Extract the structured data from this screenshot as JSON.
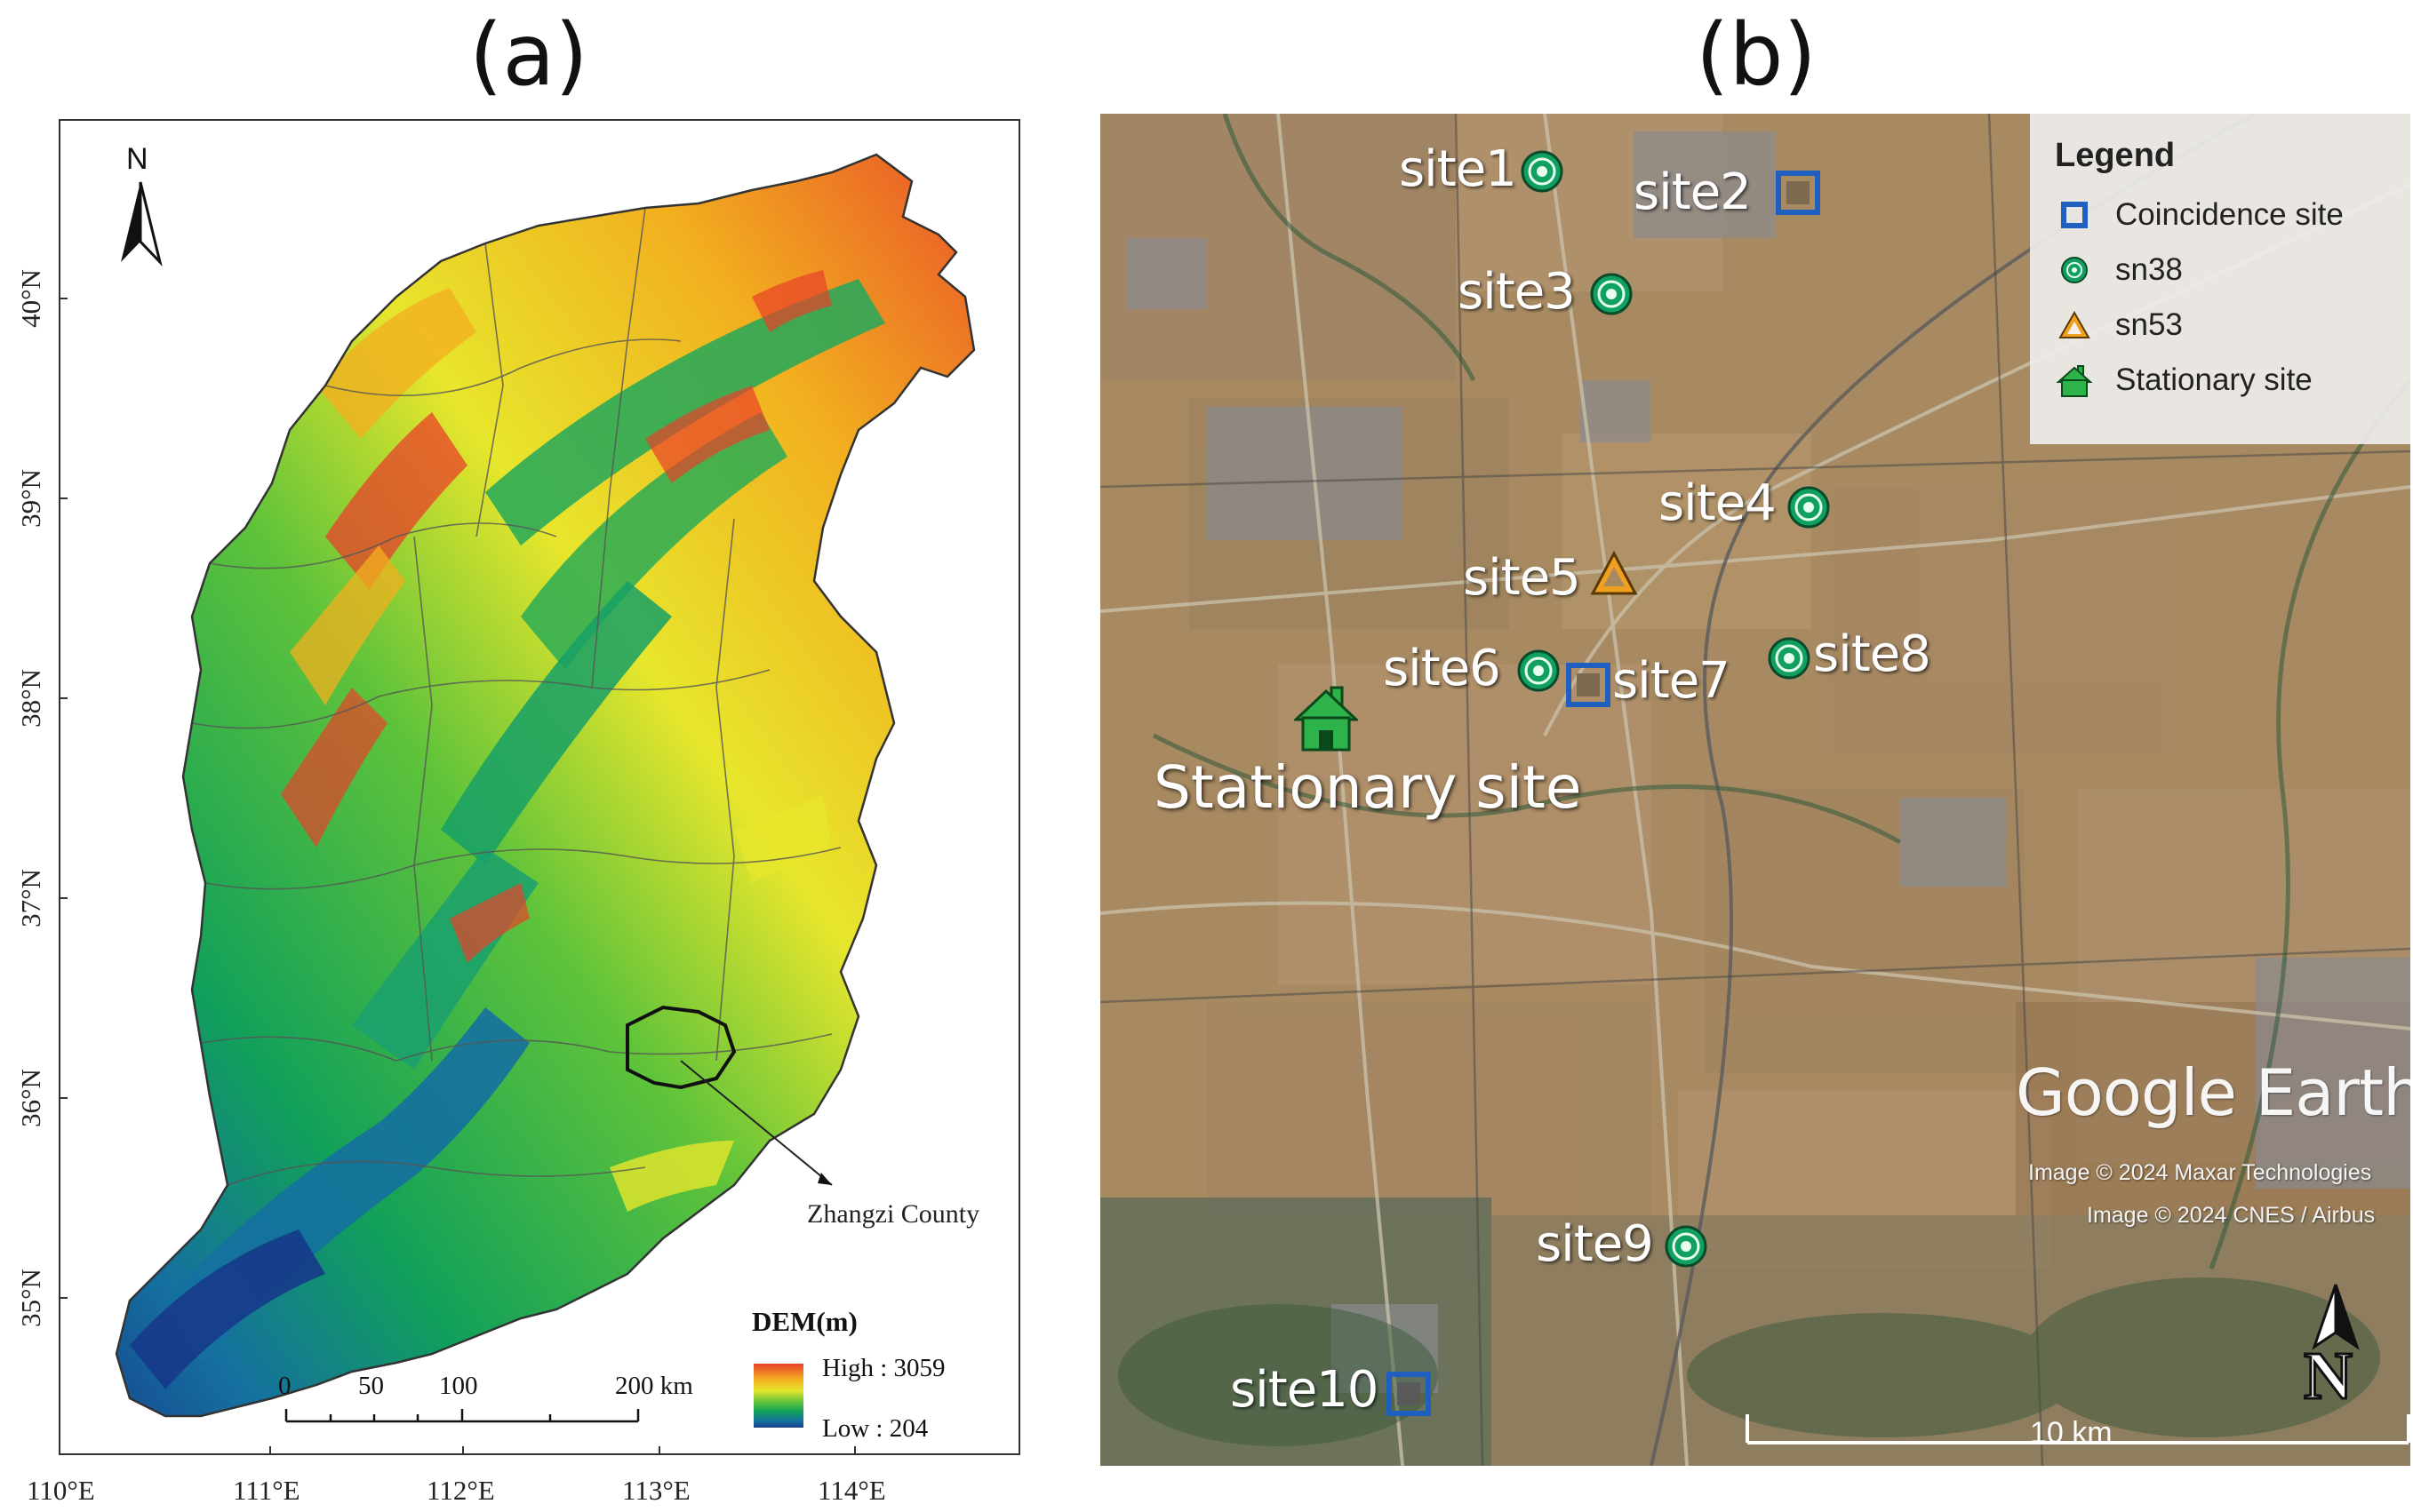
{
  "panels": {
    "a": {
      "title": "(a)",
      "north_label": "N",
      "latitude_labels": [
        "40°N",
        "39°N",
        "38°N",
        "37°N",
        "36°N",
        "35°N"
      ],
      "longitude_labels": [
        "110°E",
        "111°E",
        "112°E",
        "113°E",
        "114°E"
      ],
      "county_label": "Zhangzi County",
      "dem_legend": {
        "title": "DEM(m)",
        "high": "High : 3059",
        "low": "Low : 204",
        "colors": [
          "#e8402a",
          "#f2b01f",
          "#e7e62c",
          "#5fc33a",
          "#11a05a",
          "#1570a0",
          "#163a8a"
        ]
      },
      "scale_bar": {
        "labels": [
          "0",
          "50",
          "100",
          "200 km"
        ]
      }
    },
    "b": {
      "title": "(b)",
      "legend": {
        "title": "Legend",
        "items": [
          {
            "label": "Coincidence site",
            "symbol": "blue-square-icon",
            "color": "#1f5fbf"
          },
          {
            "label": "sn38",
            "symbol": "green-target-icon",
            "color": "#10a060"
          },
          {
            "label": "sn53",
            "symbol": "orange-triangle-icon",
            "color": "#f0a020"
          },
          {
            "label": "Stationary site",
            "symbol": "green-house-icon",
            "color": "#2db34a"
          }
        ]
      },
      "sites": [
        {
          "label": "site1",
          "type": "sn38"
        },
        {
          "label": "site2",
          "type": "coincidence"
        },
        {
          "label": "site3",
          "type": "sn38"
        },
        {
          "label": "site4",
          "type": "sn38"
        },
        {
          "label": "site5",
          "type": "sn53"
        },
        {
          "label": "site6",
          "type": "sn38"
        },
        {
          "label": "site7",
          "type": "coincidence"
        },
        {
          "label": "site8",
          "type": "sn38"
        },
        {
          "label": "site9",
          "type": "sn38"
        },
        {
          "label": "site10",
          "type": "coincidence"
        }
      ],
      "stationary_label": "Stationary site",
      "watermark": "Google Earth",
      "credits": [
        "Image © 2024 Maxar Technologies",
        "Image © 2024 CNES / Airbus"
      ],
      "scale_label": "10 km",
      "north_label": "N"
    }
  }
}
